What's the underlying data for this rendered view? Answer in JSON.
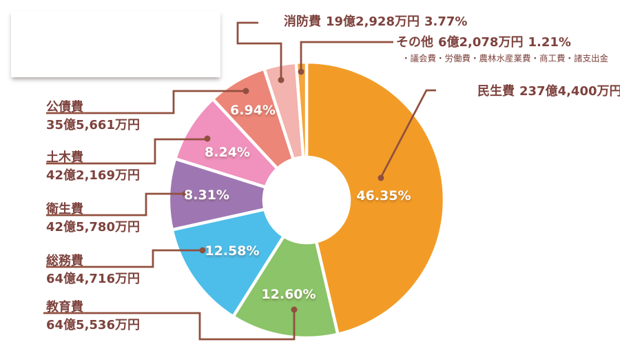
{
  "chart_data": {
    "type": "pie",
    "subtype": "donut",
    "direction": "clockwise",
    "start_angle": "top",
    "unit": "%",
    "slices": [
      {
        "id": "minseihi",
        "label": "民生費",
        "amount": "237億4,400万円",
        "percent": 46.35,
        "percent_label": "46.35%",
        "color": "#F29C27"
      },
      {
        "id": "kyoikuhi",
        "label": "教育費",
        "amount": "64億5,536万円",
        "percent": 12.6,
        "percent_label": "12.60%",
        "color": "#8BC469"
      },
      {
        "id": "somuhi",
        "label": "総務費",
        "amount": "64億4,716万円",
        "percent": 12.58,
        "percent_label": "12.58%",
        "color": "#4DBEEA"
      },
      {
        "id": "eiseihi",
        "label": "衛生費",
        "amount": "42億5,780万円",
        "percent": 8.31,
        "percent_label": "8.31%",
        "color": "#9E77B2"
      },
      {
        "id": "dobokuhi",
        "label": "土木費",
        "amount": "42億2,169万円",
        "percent": 8.24,
        "percent_label": "8.24%",
        "color": "#F091BE"
      },
      {
        "id": "kosaihi",
        "label": "公債費",
        "amount": "35億5,661万円",
        "percent": 6.94,
        "percent_label": "6.94%",
        "color": "#EC8678"
      },
      {
        "id": "shobohi",
        "label": "消防費",
        "amount": "19億2,928万円",
        "percent": 3.77,
        "percent_label": "3.77%",
        "color": "#F3B3AE"
      },
      {
        "id": "sonota",
        "label": "その他",
        "amount": "6億2,078万円",
        "percent": 1.21,
        "percent_label": "1.21%",
        "color": "#F5A63C",
        "note": "・議会費・労働費・農林水産業費・商工費・諸支出金"
      }
    ]
  },
  "colors": {
    "label_text": "#7D423D",
    "leader_line": "#91503F",
    "percent_text": "#FFFFFF",
    "background": "#FFFFFF"
  }
}
